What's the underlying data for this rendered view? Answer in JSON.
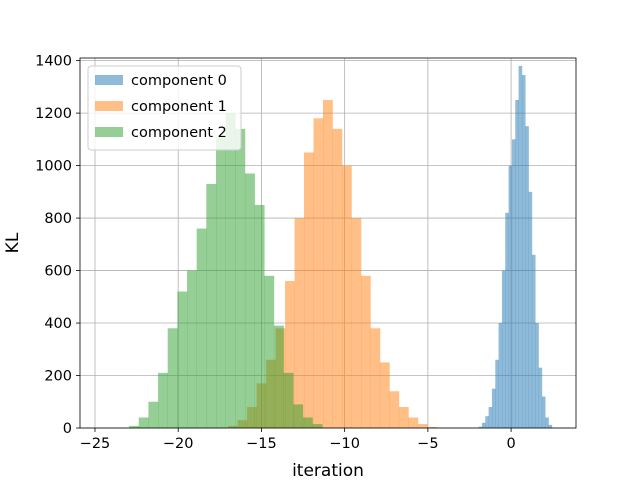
{
  "chart_data": {
    "type": "bar",
    "subtype": "overlapping-histogram",
    "xlabel": "iteration",
    "ylabel": "KL",
    "xlim": [
      -25.9,
      3.9
    ],
    "ylim": [
      0,
      1410
    ],
    "xticks": [
      -25,
      -20,
      -15,
      -10,
      -5,
      0
    ],
    "yticks": [
      0,
      200,
      400,
      600,
      800,
      1000,
      1200,
      1400
    ],
    "grid": true,
    "legend": {
      "placement": "top-left",
      "entries": [
        "component 0",
        "component 1",
        "component 2"
      ]
    },
    "series": [
      {
        "name": "component 0",
        "color": "#1f77b4",
        "opacity": 0.5,
        "bin_start": -1.95,
        "bin_width": 0.2,
        "counts": [
          5,
          20,
          45,
          80,
          150,
          260,
          400,
          600,
          820,
          1000,
          1100,
          1250,
          1380,
          1345,
          1150,
          900,
          660,
          400,
          230,
          120,
          40,
          12
        ]
      },
      {
        "name": "component 1",
        "color": "#ff7f0e",
        "opacity": 0.5,
        "bin_start": -17.0,
        "bin_width": 0.57,
        "counts": [
          8,
          30,
          80,
          170,
          260,
          380,
          560,
          800,
          1050,
          1180,
          1250,
          1140,
          1000,
          800,
          580,
          380,
          250,
          140,
          80,
          40,
          15,
          4
        ]
      },
      {
        "name": "component 2",
        "color": "#2ca02c",
        "opacity": 0.5,
        "bin_start": -22.95,
        "bin_width": 0.58,
        "counts": [
          8,
          40,
          100,
          210,
          380,
          520,
          600,
          760,
          930,
          1110,
          1200,
          1140,
          970,
          850,
          580,
          390,
          210,
          90,
          40,
          15
        ]
      }
    ]
  }
}
